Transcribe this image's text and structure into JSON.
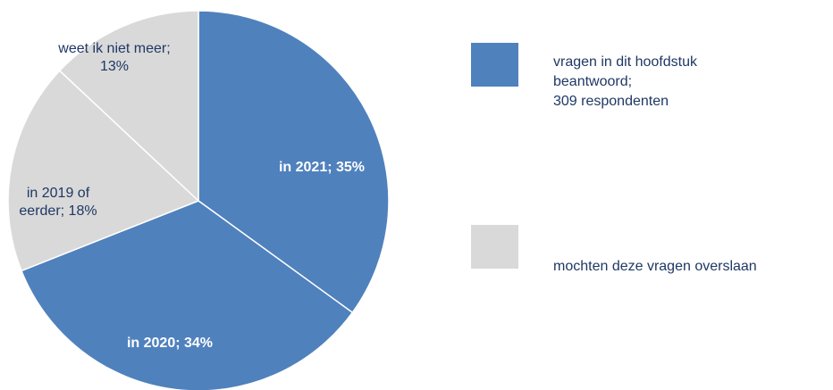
{
  "chart_data": {
    "type": "pie",
    "title": "",
    "start_angle_deg": 0,
    "direction": "clockwise",
    "slices": [
      {
        "label": "in 2021; 35%",
        "lines": [
          "in 2021; 35%"
        ],
        "value": 35,
        "category": "answered"
      },
      {
        "label": "in 2020; 34%",
        "lines": [
          "in 2020; 34%"
        ],
        "value": 34,
        "category": "answered"
      },
      {
        "label": "in 2019 of eerder; 18%",
        "lines": [
          "in 2019 of",
          "eerder;  18%"
        ],
        "value": 18,
        "category": "skipped"
      },
      {
        "label": "weet ik niet meer; 13%",
        "lines": [
          "weet  ik niet meer;",
          "13%"
        ],
        "value": 13,
        "category": "skipped"
      }
    ],
    "legend": {
      "placement": "right",
      "entries": [
        {
          "category": "answered",
          "lines": [
            "vragen in dit hoofdstuk",
            "beantwoord;",
            "309 respondenten"
          ]
        },
        {
          "category": "skipped",
          "lines": [
            "mochten deze vragen overslaan"
          ]
        }
      ]
    },
    "colors": {
      "answered": "#4f81bd",
      "skipped": "#d9d9d9",
      "separator": "#ffffff"
    }
  }
}
